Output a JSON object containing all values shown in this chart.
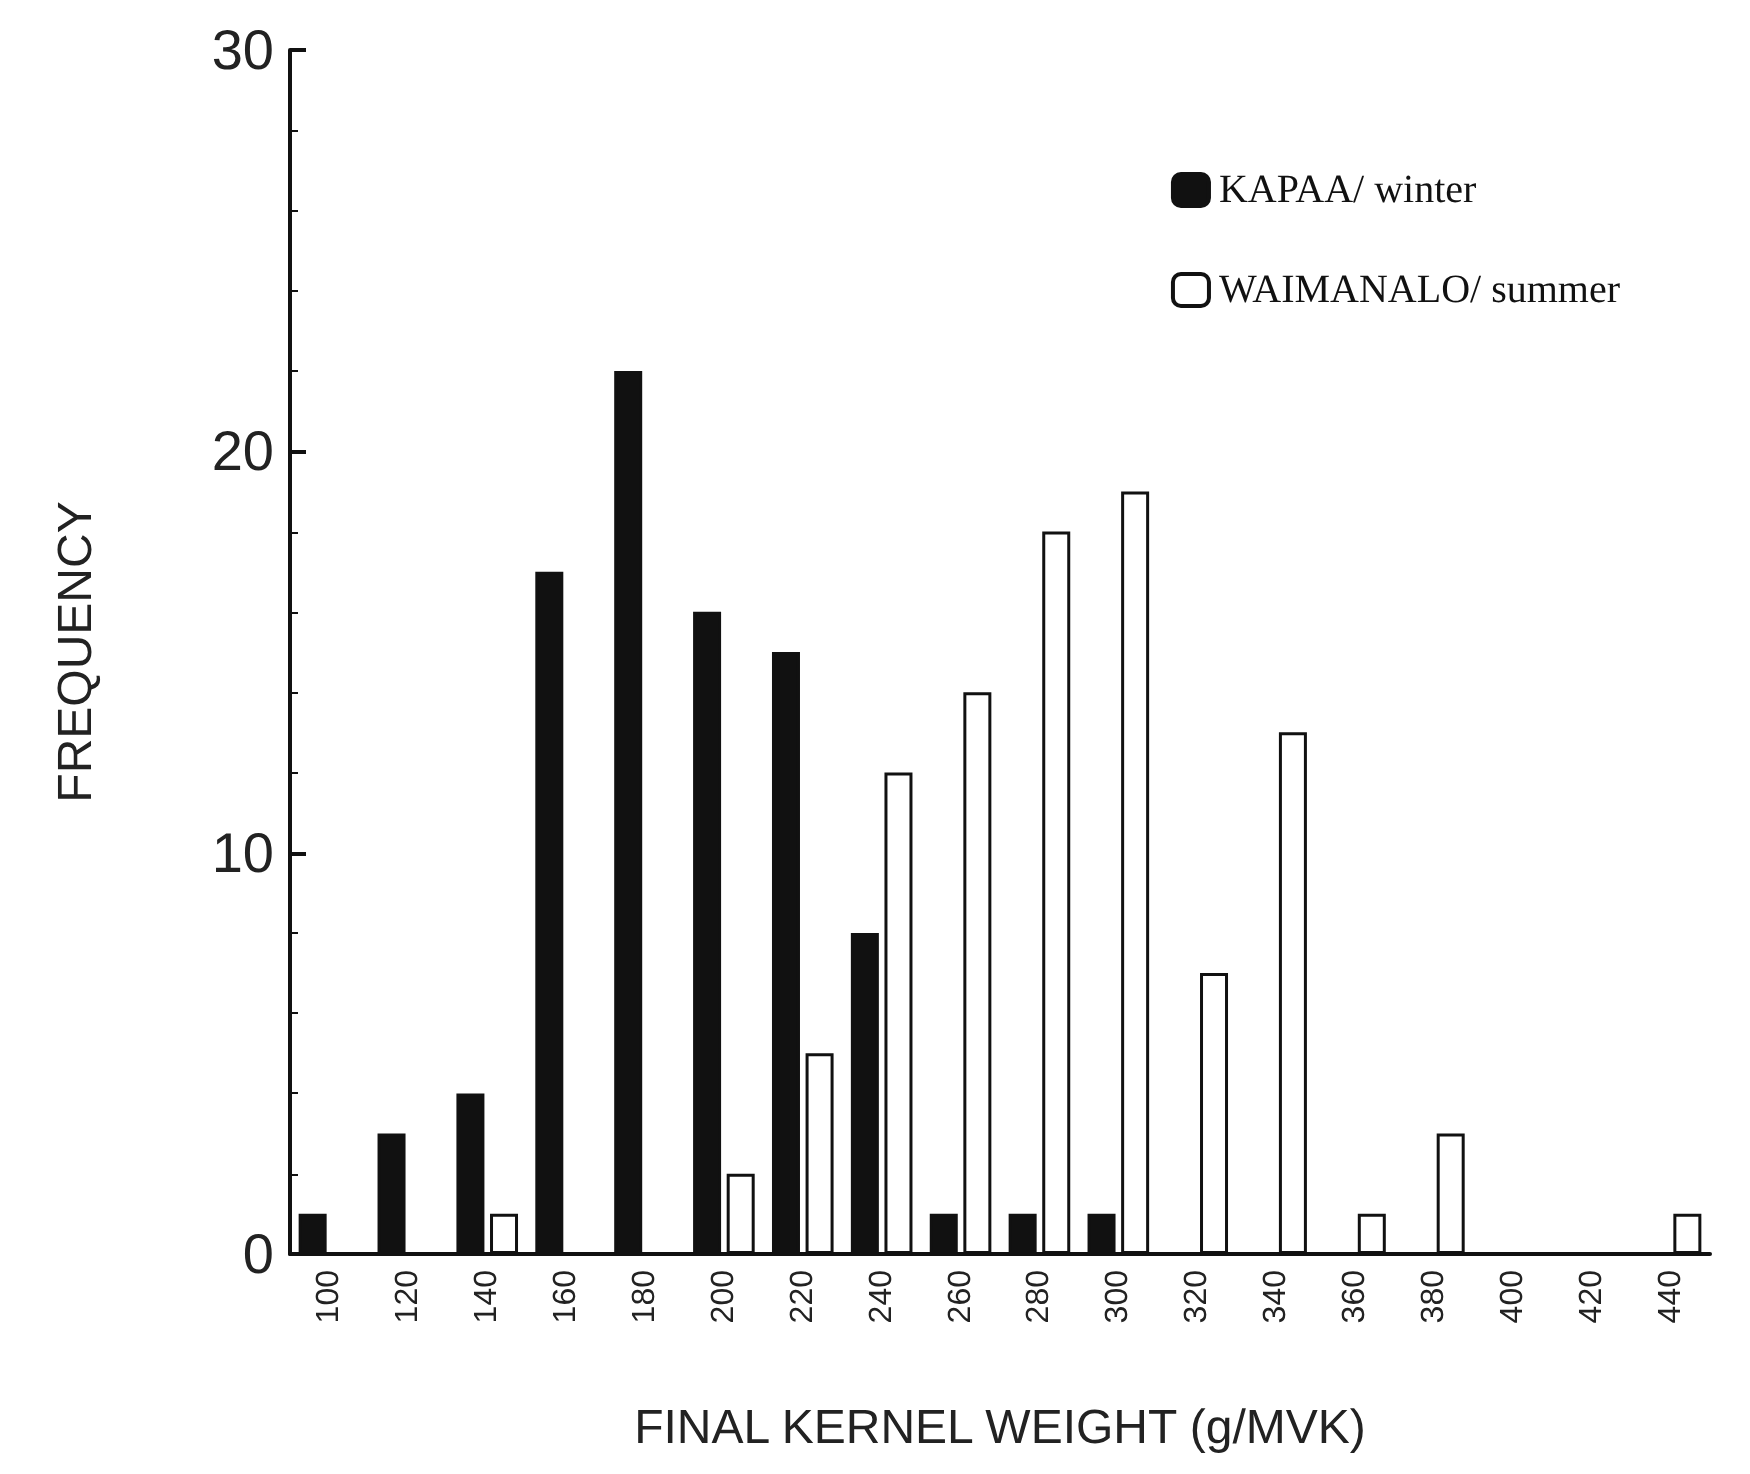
{
  "chart_data": {
    "type": "bar",
    "xlabel": "FINAL KERNEL WEIGHT (g/MVK)",
    "ylabel": "FREQUENCY",
    "categories": [
      "100",
      "120",
      "140",
      "160",
      "180",
      "200",
      "220",
      "240",
      "260",
      "280",
      "300",
      "320",
      "340",
      "360",
      "380",
      "400",
      "420",
      "440"
    ],
    "series": [
      {
        "name": "KAPAA/ winter",
        "color": "#111111",
        "values": [
          1,
          3,
          4,
          17,
          22,
          16,
          15,
          8,
          1,
          1,
          1,
          null,
          null,
          null,
          null,
          null,
          null,
          null
        ]
      },
      {
        "name": "WAIMANALO/ summer",
        "color": "#ffffff",
        "values": [
          null,
          null,
          1,
          null,
          null,
          2,
          5,
          12,
          14,
          18,
          19,
          7,
          13,
          1,
          3,
          null,
          null,
          1
        ]
      }
    ],
    "ylim": [
      0,
      30
    ],
    "yticks": [
      0,
      10,
      20,
      30
    ],
    "grid": false,
    "legend": "top"
  }
}
